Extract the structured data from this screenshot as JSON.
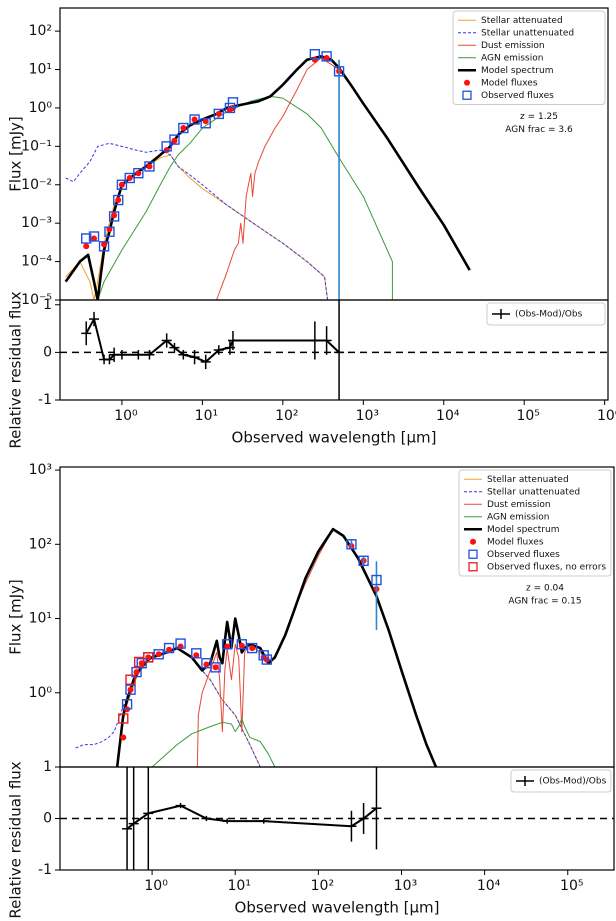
{
  "chart_data": [
    {
      "type": "sed",
      "ylabel": "Flux [mJy]",
      "xlog": true,
      "ylog": true,
      "xlim": [
        0.17,
        1100000
      ],
      "ylim": [
        1e-05,
        400
      ],
      "yticks": [
        {
          "value": 1e-05,
          "label": "10⁻⁵"
        },
        {
          "value": 0.0001,
          "label": "10⁻⁴"
        },
        {
          "value": 0.001,
          "label": "10⁻³"
        },
        {
          "value": 0.01,
          "label": "10⁻²"
        },
        {
          "value": 0.1,
          "label": "10⁻¹"
        },
        {
          "value": 1,
          "label": "10⁰"
        },
        {
          "value": 10,
          "label": "10¹"
        },
        {
          "value": 100,
          "label": "10²"
        }
      ],
      "legend": "upper right",
      "annotations": [
        "z = 1.25",
        "AGN frac = 3.6"
      ],
      "series": [
        {
          "name": "Stellar attenuated",
          "kind": "line",
          "color": "#f0a030",
          "linestyle": "solid",
          "linewidth": 1,
          "x": [
            0.2,
            0.3,
            0.4,
            0.45,
            0.5,
            0.6,
            0.8,
            1,
            2,
            3,
            4,
            5,
            7,
            10,
            20,
            50,
            100,
            200,
            330,
            360
          ],
          "values": [
            4e-05,
            0.0001,
            3e-05,
            1e-05,
            3e-05,
            0.0003,
            0.003,
            0.01,
            0.03,
            0.05,
            0.06,
            0.03,
            0.015,
            0.008,
            0.003,
            0.0008,
            0.0003,
            0.0001,
            4e-05,
            1e-05
          ]
        },
        {
          "name": "Stellar unattenuated",
          "kind": "line",
          "color": "#3535f0",
          "linestyle": "dashed",
          "linewidth": 1,
          "x": [
            0.2,
            0.25,
            0.3,
            0.4,
            0.5,
            0.7,
            1,
            1.5,
            2,
            3,
            4,
            5,
            7,
            10,
            20,
            50,
            100,
            200,
            330,
            360
          ],
          "values": [
            0.015,
            0.012,
            0.02,
            0.04,
            0.1,
            0.12,
            0.1,
            0.08,
            0.07,
            0.08,
            0.06,
            0.03,
            0.018,
            0.01,
            0.003,
            0.0008,
            0.0003,
            0.0001,
            4e-05,
            1e-05
          ]
        },
        {
          "name": "Dust emission",
          "kind": "line",
          "color": "#e8483a",
          "linestyle": "solid",
          "linewidth": 1,
          "x": [
            15,
            20,
            25,
            28,
            30,
            32,
            35,
            40,
            42,
            45,
            50,
            60,
            80,
            100,
            150,
            200,
            300,
            500
          ],
          "values": [
            1e-05,
            5e-05,
            0.0002,
            0.0003,
            0.001,
            0.0003,
            0.005,
            0.02,
            0.005,
            0.02,
            0.04,
            0.1,
            0.3,
            0.6,
            3,
            10,
            20,
            10
          ]
        },
        {
          "name": "AGN emission",
          "kind": "line",
          "color": "#3a9a3a",
          "linestyle": "solid",
          "linewidth": 1,
          "x": [
            0.45,
            0.5,
            0.6,
            1,
            2,
            3,
            4,
            5,
            7,
            10,
            20,
            40,
            70,
            100,
            200,
            300,
            500,
            1000,
            2300,
            2301
          ],
          "values": [
            3e-05,
            1e-05,
            3e-05,
            0.0002,
            0.002,
            0.01,
            0.03,
            0.06,
            0.12,
            0.3,
            0.8,
            1.5,
            2,
            1.8,
            0.7,
            0.3,
            0.05,
            0.005,
            0.0001,
            1e-05
          ]
        },
        {
          "name": "Model spectrum",
          "kind": "line",
          "color": "#000000",
          "linestyle": "solid",
          "linewidth": 2.6,
          "x": [
            0.2,
            0.3,
            0.38,
            0.45,
            0.5,
            0.55,
            0.6,
            0.7,
            0.8,
            1,
            1.5,
            2,
            3,
            4,
            5,
            7,
            10,
            15,
            20,
            30,
            50,
            70,
            100,
            150,
            200,
            300,
            400,
            500,
            700,
            1000,
            2000,
            5000,
            10000,
            21000
          ],
          "values": [
            3e-05,
            0.0001,
            0.00015,
            3e-05,
            1e-05,
            5e-05,
            0.0002,
            0.0006,
            0.002,
            0.01,
            0.02,
            0.03,
            0.06,
            0.1,
            0.2,
            0.35,
            0.5,
            0.7,
            1,
            1.2,
            1.5,
            2,
            4,
            10,
            18,
            22,
            18,
            11,
            4,
            1.3,
            0.16,
            0.008,
            0.0009,
            6e-05
          ]
        },
        {
          "name": "Model fluxes",
          "kind": "points",
          "marker": "circle",
          "color": "#ff1010",
          "x": [
            0.36,
            0.45,
            0.6,
            0.7,
            0.8,
            0.9,
            1.0,
            1.25,
            1.6,
            2.2,
            3.6,
            4.5,
            5.8,
            8,
            11,
            16,
            22,
            24,
            250,
            350,
            500
          ],
          "values": [
            0.00025,
            0.0004,
            0.00028,
            0.0007,
            0.0016,
            0.004,
            0.01,
            0.015,
            0.02,
            0.03,
            0.08,
            0.14,
            0.3,
            0.5,
            0.45,
            0.7,
            0.9,
            1,
            18,
            20,
            9
          ]
        },
        {
          "name": "Observed fluxes",
          "kind": "points",
          "marker": "square",
          "color": "#2050e0",
          "error_color": "#2a88cc",
          "x": [
            0.36,
            0.45,
            0.6,
            0.7,
            0.8,
            0.9,
            1.0,
            1.25,
            1.6,
            2.2,
            3.6,
            4.5,
            5.8,
            8,
            11,
            16,
            22,
            24,
            250,
            350,
            500
          ],
          "values": [
            0.0004,
            0.00045,
            0.00025,
            0.0006,
            0.0015,
            0.004,
            0.01,
            0.015,
            0.02,
            0.03,
            0.1,
            0.15,
            0.3,
            0.5,
            0.4,
            0.7,
            1,
            1.4,
            25,
            22,
            9
          ],
          "errors": [
            0,
            0,
            0,
            0,
            0,
            0,
            0,
            0,
            0,
            0,
            0,
            0,
            0,
            0,
            0,
            0,
            0,
            0,
            0,
            0,
            9
          ]
        }
      ]
    },
    {
      "type": "residual",
      "ylabel": "Relative residual flux",
      "xlabel": "Observed wavelength [μm]",
      "xlog": true,
      "ylog": false,
      "xlim": [
        0.17,
        1100000
      ],
      "ylim": [
        -1,
        1.1
      ],
      "hline": 0,
      "xticks": [
        {
          "value": 1,
          "label": "10⁰"
        },
        {
          "value": 10,
          "label": "10¹"
        },
        {
          "value": 100,
          "label": "10²"
        },
        {
          "value": 1000,
          "label": "10³"
        },
        {
          "value": 10000,
          "label": "10⁴"
        },
        {
          "value": 100000,
          "label": "10⁵"
        },
        {
          "value": 1000000,
          "label": "10⁶"
        }
      ],
      "yticks": [
        -1,
        0,
        1
      ],
      "legend": "upper right",
      "series": [
        {
          "name": "(Obs-Mod)/Obs",
          "kind": "errorline",
          "color": "#000000",
          "x": [
            0.36,
            0.45,
            0.6,
            0.7,
            0.8,
            1.0,
            1.6,
            2.2,
            3.6,
            4.5,
            5.8,
            8,
            11,
            16,
            22,
            24,
            250,
            350,
            500
          ],
          "values": [
            0.4,
            0.7,
            -0.15,
            -0.15,
            -0.05,
            -0.05,
            -0.05,
            -0.05,
            0.25,
            0.1,
            -0.05,
            -0.1,
            -0.2,
            0.05,
            0.1,
            0.25,
            0.25,
            0.25,
            0.0
          ],
          "errors": [
            0.25,
            0.15,
            0.1,
            0.1,
            0.15,
            0.1,
            0.1,
            0.1,
            0.15,
            0.1,
            0.1,
            0.15,
            0.15,
            0.1,
            0.15,
            0.2,
            0.4,
            0.3,
            1.2
          ]
        }
      ]
    },
    {
      "type": "sed",
      "ylabel": "Flux [mJy]",
      "xlog": true,
      "ylog": true,
      "xlim": [
        0.078,
        360000
      ],
      "ylim": [
        0.1,
        1100
      ],
      "yticks": [
        {
          "value": 1,
          "label": "10⁰"
        },
        {
          "value": 10,
          "label": "10¹"
        },
        {
          "value": 100,
          "label": "10²"
        },
        {
          "value": 1000,
          "label": "10³"
        }
      ],
      "legend": "upper right",
      "annotations": [
        "z = 0.04",
        "AGN frac = 0.15"
      ],
      "series": [
        {
          "name": "Stellar attenuated",
          "kind": "line",
          "color": "#f0a030",
          "linestyle": "solid",
          "linewidth": 1,
          "x": [
            0.38,
            0.42,
            0.5,
            0.7,
            1,
            1.5,
            2,
            3,
            4,
            5,
            7,
            10,
            15,
            20
          ],
          "values": [
            0.1,
            0.3,
            0.7,
            2,
            3,
            3.5,
            4,
            3,
            2,
            1.5,
            0.8,
            0.5,
            0.2,
            0.1
          ]
        },
        {
          "name": "Stellar unattenuated",
          "kind": "line",
          "color": "#3535f0",
          "linestyle": "dashed",
          "linewidth": 1,
          "x": [
            0.12,
            0.15,
            0.2,
            0.25,
            0.3,
            0.35,
            0.4,
            0.5,
            0.7,
            1,
            1.5,
            2,
            3,
            4,
            5,
            7,
            10,
            15,
            20
          ],
          "values": [
            0.18,
            0.2,
            0.2,
            0.22,
            0.25,
            0.3,
            0.45,
            0.9,
            2,
            3,
            3.5,
            4,
            3,
            2,
            1.5,
            0.8,
            0.5,
            0.2,
            0.1
          ]
        },
        {
          "name": "Dust emission",
          "kind": "line",
          "color": "#e8483a",
          "linestyle": "solid",
          "linewidth": 1,
          "x": [
            3.5,
            3.6,
            4,
            5,
            6,
            6.5,
            7,
            7.5,
            8,
            9,
            10,
            11,
            11.5,
            12,
            13,
            15,
            17,
            20,
            25,
            30,
            40,
            50,
            70,
            100,
            150
          ],
          "values": [
            0.1,
            0.5,
            1,
            2,
            3.5,
            1.5,
            0.3,
            2,
            4,
            1.5,
            4.5,
            3,
            1,
            0.3,
            3.5,
            4.5,
            4,
            3.5,
            2.5,
            3,
            6,
            12,
            30,
            70,
            160
          ]
        },
        {
          "name": "AGN emission",
          "kind": "line",
          "color": "#3a9a3a",
          "linestyle": "solid",
          "linewidth": 1,
          "x": [
            1,
            1.5,
            2,
            3,
            5,
            7,
            9,
            10,
            11,
            12,
            13,
            15,
            20,
            25,
            30
          ],
          "values": [
            0.1,
            0.15,
            0.2,
            0.28,
            0.35,
            0.4,
            0.38,
            0.3,
            0.35,
            0.45,
            0.35,
            0.25,
            0.22,
            0.15,
            0.1
          ]
        },
        {
          "name": "Model spectrum",
          "kind": "line",
          "color": "#000000",
          "linestyle": "solid",
          "linewidth": 2.6,
          "x": [
            0.38,
            0.45,
            0.5,
            0.6,
            0.7,
            0.9,
            1,
            1.5,
            2,
            3,
            4,
            5,
            6,
            6.5,
            7,
            7.5,
            8,
            9,
            10,
            11,
            12,
            13,
            15,
            20,
            25,
            30,
            40,
            50,
            70,
            100,
            150,
            200,
            300,
            500,
            700,
            1000,
            1500,
            2000,
            2600
          ],
          "values": [
            0.1,
            0.5,
            0.8,
            1.5,
            2,
            2.8,
            3,
            3.5,
            4,
            3,
            2,
            2.5,
            5,
            3,
            2.5,
            5,
            9,
            4,
            10,
            6,
            3.5,
            4,
            4.5,
            4,
            2.5,
            3,
            6,
            12,
            35,
            80,
            160,
            130,
            65,
            20,
            7,
            2,
            0.5,
            0.2,
            0.1
          ]
        },
        {
          "name": "Model fluxes",
          "kind": "points",
          "marker": "circle",
          "color": "#ff1010",
          "x": [
            0.45,
            0.5,
            0.55,
            0.65,
            0.75,
            0.9,
            1.2,
            1.6,
            2.2,
            3.4,
            4.5,
            5.8,
            8,
            12,
            16,
            22,
            24,
            250,
            350,
            500
          ],
          "values": [
            0.25,
            0.6,
            1.1,
            1.9,
            2.5,
            3,
            3.3,
            3.8,
            4.2,
            3.2,
            2.4,
            2.2,
            4.2,
            4.3,
            4,
            3,
            2.8,
            95,
            60,
            25
          ]
        },
        {
          "name": "Observed fluxes",
          "kind": "points",
          "marker": "square",
          "color": "#2050e0",
          "error_color": "#2a88cc",
          "x": [
            0.5,
            0.55,
            0.65,
            0.75,
            0.9,
            1.2,
            1.6,
            2.2,
            3.4,
            4.5,
            5.8,
            8,
            12,
            16,
            22,
            24,
            250,
            350,
            500
          ],
          "values": [
            0.7,
            1.1,
            1.9,
            2.5,
            3,
            3.3,
            4,
            4.6,
            3.4,
            2.5,
            2.2,
            4.5,
            4.5,
            4,
            3.2,
            2.8,
            100,
            60,
            33
          ],
          "errors": [
            0,
            0,
            0,
            0,
            0,
            0,
            0,
            0,
            0,
            0,
            0,
            0,
            0,
            0,
            0,
            0,
            15,
            10,
            26
          ]
        },
        {
          "name": "Observed fluxes, no errors",
          "kind": "points",
          "marker": "square",
          "color": "#e02020",
          "x": [
            0.45,
            0.55,
            0.7,
            0.9
          ],
          "values": [
            0.45,
            1.5,
            2.6,
            3
          ]
        }
      ]
    },
    {
      "type": "residual",
      "ylabel": "Relative residual flux",
      "xlabel": "Observed wavelength [μm]",
      "xlog": true,
      "ylog": false,
      "xlim": [
        0.078,
        360000
      ],
      "ylim": [
        -1,
        1
      ],
      "hline": 0,
      "xticks": [
        {
          "value": 1,
          "label": "10⁰"
        },
        {
          "value": 10,
          "label": "10¹"
        },
        {
          "value": 100,
          "label": "10²"
        },
        {
          "value": 1000,
          "label": "10³"
        },
        {
          "value": 10000,
          "label": "10⁴"
        },
        {
          "value": 100000,
          "label": "10⁵"
        }
      ],
      "yticks": [
        -1,
        0,
        1
      ],
      "legend": "upper right",
      "series": [
        {
          "name": "(Obs-Mod)/Obs",
          "kind": "errorline",
          "color": "#000000",
          "x": [
            0.5,
            0.6,
            0.9,
            2.2,
            4.5,
            8,
            22,
            250,
            350,
            500
          ],
          "values": [
            -0.2,
            -0.1,
            0.1,
            0.25,
            0.0,
            -0.05,
            -0.05,
            -0.15,
            0.0,
            0.2
          ],
          "errors": [
            1.5,
            1.5,
            1.5,
            0.05,
            0.05,
            0.05,
            0.05,
            0.3,
            0.3,
            0.8
          ]
        }
      ]
    }
  ]
}
